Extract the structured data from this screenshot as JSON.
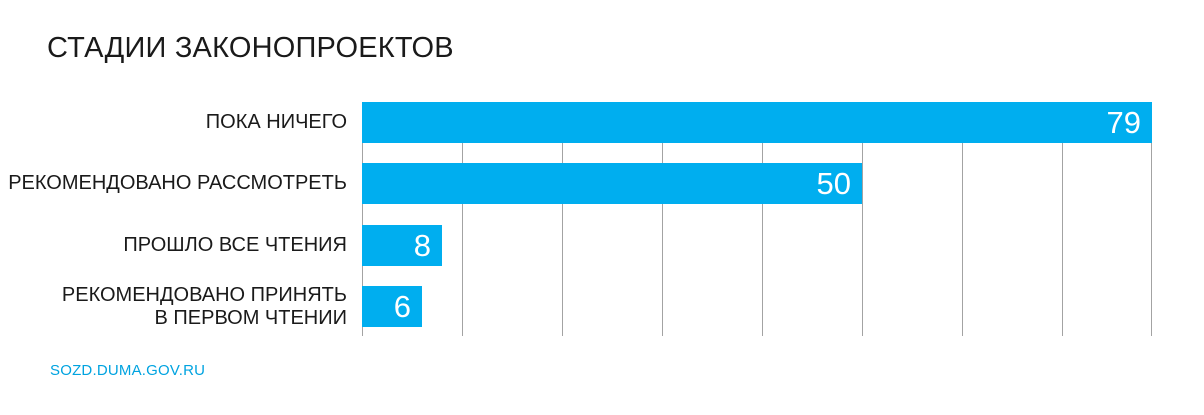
{
  "page": {
    "background": "#ffffff"
  },
  "chart_data": {
    "type": "bar",
    "orientation": "horizontal",
    "title": "СТАДИИ ЗАКОНОПРОЕКТОВ",
    "categories": [
      "ПОКА НИЧЕГО",
      "РЕКОМЕНДОВАНО РАССМОТРЕТЬ",
      "ПРОШЛО ВСЕ ЧТЕНИЯ",
      "РЕКОМЕНДОВАНО ПРИНЯТЬ\nВ ПЕРВОМ ЧТЕНИИ"
    ],
    "values": [
      79,
      50,
      8,
      6
    ],
    "xlim": [
      0,
      79
    ],
    "gridlines": [
      0,
      10,
      20,
      30,
      40,
      50,
      60,
      70,
      79
    ],
    "grid": true,
    "legend": "none",
    "bar_color": "#00aeef",
    "gridline_color": "#a3a3a3",
    "value_label_color": "#ffffff",
    "value_labels_position": "inside-end"
  },
  "footer": {
    "link": "SOZD.DUMA.GOV.RU",
    "link_color": "#00a3e0"
  }
}
